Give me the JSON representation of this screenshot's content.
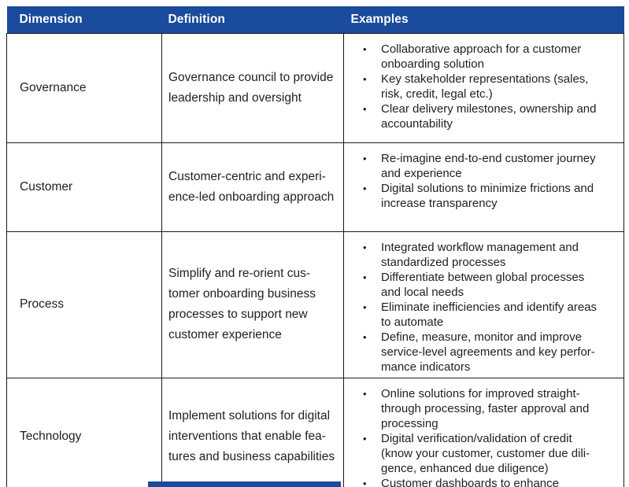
{
  "table": {
    "accent_color": "#1a4b9c",
    "headers": [
      "Dimension",
      "Definition",
      "Examples"
    ],
    "rows": [
      {
        "dimension": "Governance",
        "definition": "Governance council to provide\nleadership and oversight",
        "examples": [
          "Collaborative approach for a customer\nonboarding solution",
          "Key stakeholder representations (sales,\nrisk, credit, legal etc.)",
          "Clear delivery milestones, ownership and\naccountability"
        ]
      },
      {
        "dimension": "Customer",
        "definition": "Customer-centric and experi-\nence-led onboarding approach",
        "examples": [
          "Re-imagine end-to-end customer journey\nand experience",
          "Digital solutions to minimize frictions and\nincrease transparency"
        ]
      },
      {
        "dimension": "Process",
        "definition": "Simplify and re-orient cus-\ntomer onboarding business\nprocesses to support new\ncustomer experience",
        "examples": [
          "Integrated workflow management and\nstandardized processes",
          "Differentiate between global processes\nand local needs",
          "Eliminate inefficiencies and identify areas\nto automate",
          "Define, measure, monitor and improve\nservice-level agreements and key perfor-\nmance indicators"
        ]
      },
      {
        "dimension": "Technology",
        "definition": "Implement solutions for digital\ninterventions that enable fea-\ntures and business capabilities",
        "examples": [
          "Online solutions for improved straight-\nthrough processing, faster approval and\nprocessing",
          "Digital verification/validation of credit\n(know your customer, customer due dili-\ngence, enhanced due diligence)",
          "Customer dashboards to enhance"
        ]
      }
    ],
    "bullet_glyph": "•"
  }
}
